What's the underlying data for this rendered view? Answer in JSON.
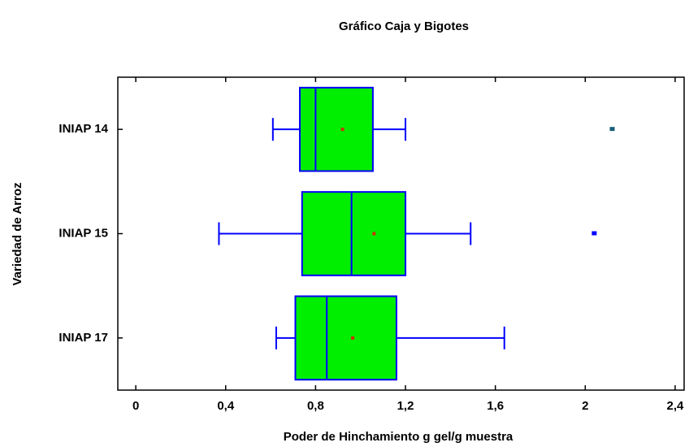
{
  "chart_data": {
    "type": "boxplot",
    "orientation": "horizontal",
    "title": "Gráfico Caja y Bigotes",
    "x_label": "Poder de Hinchamiento  g gel/g muestra",
    "y_label": "Variedad de Arroz",
    "categories": [
      "INIAP 14",
      "INIAP 15",
      "INIAP 17"
    ],
    "boxes": [
      {
        "min": 0.61,
        "q1": 0.73,
        "median": 0.8,
        "q3": 1.055,
        "max": 1.2,
        "mean": 0.92,
        "outliers": [
          2.12
        ]
      },
      {
        "min": 0.37,
        "q1": 0.74,
        "median": 0.96,
        "q3": 1.2,
        "max": 1.49,
        "mean": 1.06,
        "outliers": [
          2.04
        ]
      },
      {
        "min": 0.625,
        "q1": 0.71,
        "median": 0.85,
        "q3": 1.16,
        "max": 1.64,
        "mean": 0.965,
        "outliers": []
      }
    ],
    "box_color": "#00ee00",
    "line_color": "#0000ff",
    "mean_color": "#cc3300",
    "outlier_colors": [
      "#1a5e7a",
      "#0000ff",
      "#0000ff"
    ],
    "xlim": [
      -0.08,
      2.44
    ],
    "xticks": [
      0,
      {
        "value": 0.4,
        "label": "0,4"
      },
      {
        "value": 0.8,
        "label": "0,8"
      },
      {
        "value": 1.2,
        "label": "1,2"
      },
      {
        "value": 1.6,
        "label": "1,6"
      },
      2,
      {
        "value": 2.4,
        "label": "2,4"
      }
    ]
  }
}
